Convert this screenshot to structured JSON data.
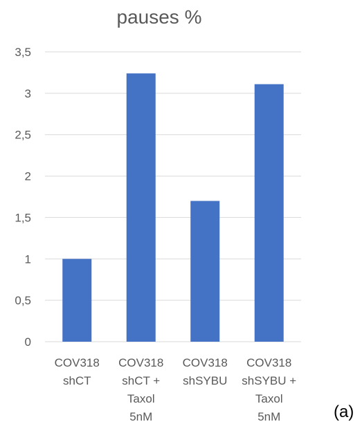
{
  "chart_data": {
    "type": "bar",
    "title": "pauses %",
    "categories": [
      [
        "COV318",
        "shCT"
      ],
      [
        "COV318",
        "shCT +",
        "Taxol",
        "5nM"
      ],
      [
        "COV318",
        "shSYBU"
      ],
      [
        "COV318",
        "shSYBU +",
        "Taxol",
        "5nM"
      ]
    ],
    "values": [
      1.0,
      3.24,
      1.7,
      3.11
    ],
    "ylim": [
      0,
      3.5
    ],
    "yticks": [
      "0",
      "0,5",
      "1",
      "1,5",
      "2",
      "2,5",
      "3",
      "3,5"
    ],
    "ytick_values": [
      0,
      0.5,
      1,
      1.5,
      2,
      2.5,
      3,
      3.5
    ],
    "grid": true,
    "legend": "none",
    "colors": {
      "bar": "#4472C4",
      "grid": "#D9D9D9",
      "text": "#595959"
    }
  },
  "panel_label": "(a)"
}
